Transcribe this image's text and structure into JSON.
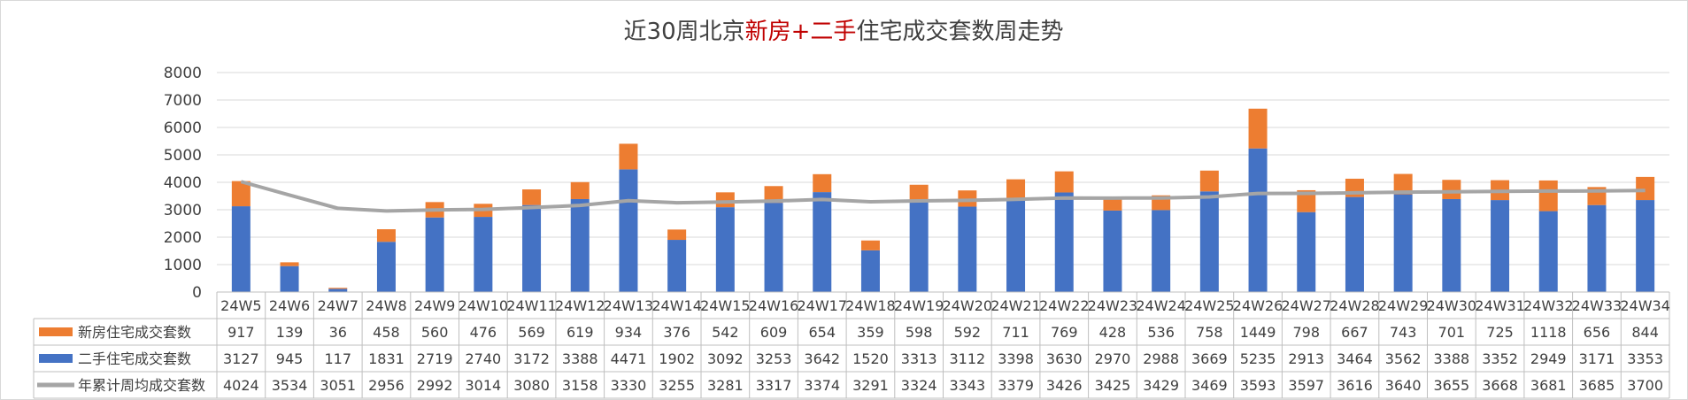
{
  "title": {
    "part1": "近30周北京",
    "part2": "新房+二手",
    "part3": "住宅成交套数周走势"
  },
  "colors": {
    "new": "#ED7D31",
    "second": "#4472C4",
    "avg": "#A5A5A5",
    "title_red": "#C00000",
    "grid": "#D9D9D9",
    "text": "#404040"
  },
  "chart_data": {
    "type": "bar",
    "stacked": true,
    "categories": [
      "24W5",
      "24W6",
      "24W7",
      "24W8",
      "24W9",
      "24W10",
      "24W11",
      "24W12",
      "24W13",
      "24W14",
      "24W15",
      "24W16",
      "24W17",
      "24W18",
      "24W19",
      "24W20",
      "24W21",
      "24W22",
      "24W23",
      "24W24",
      "24W25",
      "24W26",
      "24W27",
      "24W28",
      "24W29",
      "24W30",
      "24W31",
      "24W32",
      "24W33",
      "24W34"
    ],
    "series": [
      {
        "name": "新房住宅成交套数",
        "type": "bar",
        "color": "#ED7D31",
        "values": [
          917,
          139,
          36,
          458,
          560,
          476,
          569,
          619,
          934,
          376,
          542,
          609,
          654,
          359,
          598,
          592,
          711,
          769,
          428,
          536,
          758,
          1449,
          798,
          667,
          743,
          701,
          725,
          1118,
          656,
          844
        ]
      },
      {
        "name": "二手住宅成交套数",
        "type": "bar",
        "color": "#4472C4",
        "values": [
          3127,
          945,
          117,
          1831,
          2719,
          2740,
          3172,
          3388,
          4471,
          1902,
          3092,
          3253,
          3642,
          1520,
          3313,
          3112,
          3398,
          3630,
          2970,
          2988,
          3669,
          5235,
          2913,
          3464,
          3562,
          3388,
          3352,
          2949,
          3171,
          3353
        ]
      },
      {
        "name": "年累计周均成交套数",
        "type": "line",
        "color": "#A5A5A5",
        "values": [
          4024,
          3534,
          3051,
          2956,
          2992,
          3014,
          3080,
          3158,
          3330,
          3255,
          3281,
          3317,
          3374,
          3291,
          3324,
          3343,
          3379,
          3426,
          3425,
          3429,
          3469,
          3593,
          3597,
          3616,
          3640,
          3655,
          3668,
          3681,
          3685,
          3700
        ]
      }
    ],
    "ylim": [
      0,
      8000
    ],
    "yticks": [
      0,
      1000,
      2000,
      3000,
      4000,
      5000,
      6000,
      7000,
      8000
    ],
    "grid": true,
    "legend": "data-table"
  }
}
